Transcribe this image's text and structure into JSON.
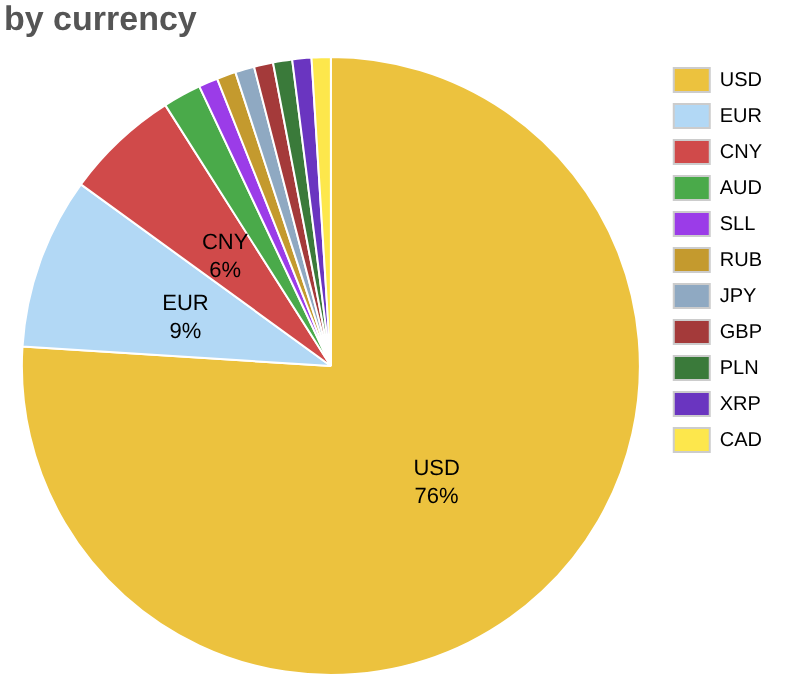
{
  "chart_data": {
    "type": "pie",
    "title": "by currency",
    "categories": [
      "USD",
      "EUR",
      "CNY",
      "AUD",
      "SLL",
      "RUB",
      "JPY",
      "GBP",
      "PLN",
      "XRP",
      "CAD"
    ],
    "values": [
      76,
      9,
      6,
      2,
      1,
      1,
      1,
      1,
      1,
      1,
      1
    ],
    "colors": [
      "#ecc23e",
      "#b2d8f5",
      "#d04a4a",
      "#4aaa4a",
      "#9b3ce8",
      "#c49a2e",
      "#8fa9c2",
      "#a43a3a",
      "#3a7a3a",
      "#6a35c0",
      "#fde74c"
    ],
    "value_labels": [
      "76%",
      "9%",
      "6%",
      null,
      null,
      null,
      null,
      null,
      null,
      null,
      null
    ],
    "legend": "right"
  }
}
